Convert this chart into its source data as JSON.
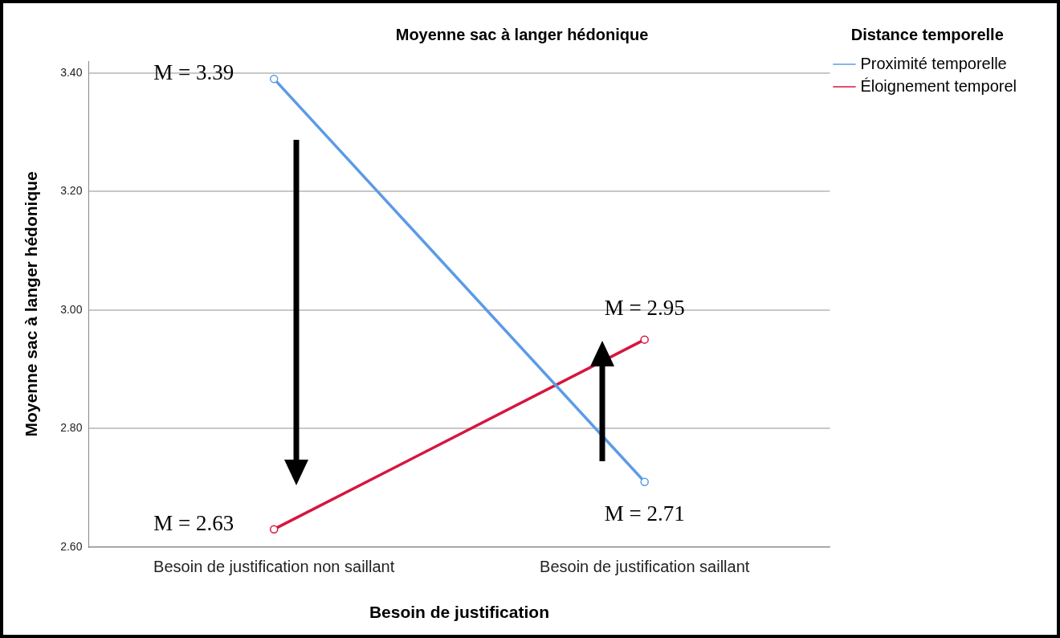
{
  "chart_data": {
    "type": "line",
    "title": "Moyenne sac à langer hédonique",
    "xlabel": "Besoin de justification",
    "ylabel": "Moyenne sac à langer hédonique",
    "legend_title": "Distance temporelle",
    "categories": [
      "Besoin de justification non saillant",
      "Besoin de justification saillant"
    ],
    "series": [
      {
        "name": "Proximité temporelle",
        "color": "#5b9be6",
        "values": [
          3.39,
          2.71
        ],
        "value_labels": [
          "M = 3.39",
          "M = 2.71"
        ]
      },
      {
        "name": "Éloignement temporel",
        "color": "#d6163f",
        "values": [
          2.63,
          2.95
        ],
        "value_labels": [
          "M = 2.63",
          "M = 2.95"
        ]
      }
    ],
    "ylim": [
      2.6,
      3.42
    ],
    "yticks": [
      {
        "value": 2.6,
        "label": "2.60"
      },
      {
        "value": 2.8,
        "label": "2.80"
      },
      {
        "value": 3.0,
        "label": "3.00"
      },
      {
        "value": 3.2,
        "label": "3.20"
      },
      {
        "value": 3.4,
        "label": "3.40"
      }
    ],
    "grid": "y",
    "legend": "top right",
    "marker": "circle",
    "line_style": "solid"
  }
}
